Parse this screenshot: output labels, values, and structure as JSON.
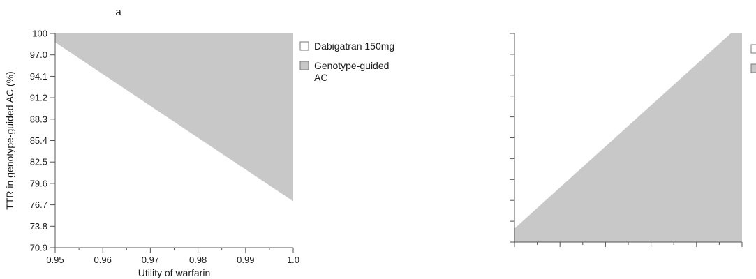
{
  "chart_data": [
    {
      "type": "area",
      "panel_label": "a",
      "xlabel": "Utility of warfarin",
      "ylabel": "TTR in genotype-guided AC (%)",
      "x_ticks": [
        "0.95",
        "0.96",
        "0.97",
        "0.98",
        "0.99",
        "1.0"
      ],
      "y_ticks": [
        "70.9",
        "73.8",
        "76.7",
        "79.6",
        "82.5",
        "85.4",
        "88.3",
        "91.2",
        "94.1",
        "97.0",
        "100"
      ],
      "xlim": [
        0.95,
        1.0
      ],
      "ylim": [
        70.9,
        100
      ],
      "boundary": {
        "x": [
          0.95,
          1.0
        ],
        "y": [
          98.8,
          77.2
        ]
      },
      "region_above": "Genotype-guided AC",
      "region_below": "Dabigatran 150mg",
      "legend": [
        {
          "name": "Dabigatran 150mg",
          "color": "#ffffff"
        },
        {
          "name": "Genotype-guided AC",
          "color": "#c8c8c8"
        }
      ],
      "legend_position": "right"
    },
    {
      "type": "area",
      "x_ticks": [],
      "y_ticks": [],
      "xlim": [
        0,
        1
      ],
      "ylim": [
        0,
        1
      ],
      "boundary": {
        "x": [
          0,
          0.95
        ],
        "y": [
          0.065,
          1.0
        ]
      },
      "region_above": "",
      "region_below": "",
      "legend": [
        {
          "name": "",
          "color": "#ffffff"
        },
        {
          "name": "",
          "color": "#c8c8c8"
        }
      ],
      "legend_position": "right"
    }
  ],
  "colors": {
    "fill": "#c8c8c8",
    "empty": "#ffffff",
    "axis": "#555555"
  }
}
